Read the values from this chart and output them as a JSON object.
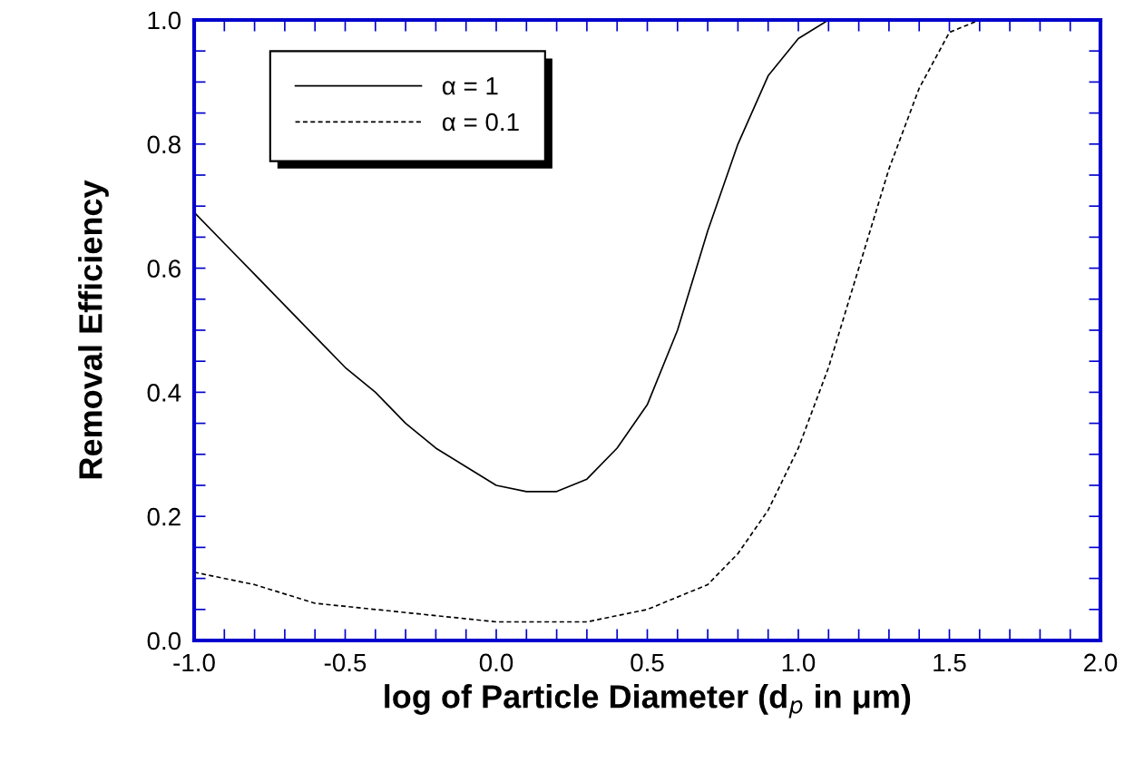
{
  "chart_data": {
    "type": "line",
    "xlabel": "log of Particle Diameter (d$_{p}$ in μm)",
    "ylabel": "Removal Efficiency",
    "xlim": [
      -1.0,
      2.0
    ],
    "ylim": [
      0.0,
      1.0
    ],
    "xticks": [
      {
        "value": -1.0,
        "label": "-1.0"
      },
      {
        "value": -0.9,
        "label": null
      },
      {
        "value": -0.8,
        "label": null
      },
      {
        "value": -0.7,
        "label": null
      },
      {
        "value": -0.6,
        "label": null
      },
      {
        "value": -0.5,
        "label": "-0.5"
      },
      {
        "value": -0.4,
        "label": null
      },
      {
        "value": -0.3,
        "label": null
      },
      {
        "value": -0.2,
        "label": null
      },
      {
        "value": -0.1,
        "label": null
      },
      {
        "value": 0.0,
        "label": "0.0"
      },
      {
        "value": 0.1,
        "label": null
      },
      {
        "value": 0.2,
        "label": null
      },
      {
        "value": 0.3,
        "label": null
      },
      {
        "value": 0.4,
        "label": null
      },
      {
        "value": 0.5,
        "label": "0.5"
      },
      {
        "value": 0.6,
        "label": null
      },
      {
        "value": 0.7,
        "label": null
      },
      {
        "value": 0.8,
        "label": null
      },
      {
        "value": 0.9,
        "label": null
      },
      {
        "value": 1.0,
        "label": "1.0"
      },
      {
        "value": 1.1,
        "label": null
      },
      {
        "value": 1.2,
        "label": null
      },
      {
        "value": 1.3,
        "label": null
      },
      {
        "value": 1.4,
        "label": null
      },
      {
        "value": 1.5,
        "label": "1.5"
      },
      {
        "value": 1.6,
        "label": null
      },
      {
        "value": 1.7,
        "label": null
      },
      {
        "value": 1.8,
        "label": null
      },
      {
        "value": 1.9,
        "label": null
      },
      {
        "value": 2.0,
        "label": "2.0"
      }
    ],
    "yticks": [
      {
        "value": 0.0,
        "label": "0.0"
      },
      {
        "value": 0.05,
        "label": null
      },
      {
        "value": 0.1,
        "label": null
      },
      {
        "value": 0.15,
        "label": null
      },
      {
        "value": 0.2,
        "label": "0.2"
      },
      {
        "value": 0.25,
        "label": null
      },
      {
        "value": 0.3,
        "label": null
      },
      {
        "value": 0.35,
        "label": null
      },
      {
        "value": 0.4,
        "label": "0.4"
      },
      {
        "value": 0.45,
        "label": null
      },
      {
        "value": 0.5,
        "label": null
      },
      {
        "value": 0.55,
        "label": null
      },
      {
        "value": 0.6,
        "label": "0.6"
      },
      {
        "value": 0.65,
        "label": null
      },
      {
        "value": 0.7,
        "label": null
      },
      {
        "value": 0.75,
        "label": null
      },
      {
        "value": 0.8,
        "label": "0.8"
      },
      {
        "value": 0.85,
        "label": null
      },
      {
        "value": 0.9,
        "label": null
      },
      {
        "value": 0.95,
        "label": null
      },
      {
        "value": 1.0,
        "label": "1.0"
      }
    ],
    "legend": "top left",
    "grid": false,
    "marker": "none",
    "series": [
      {
        "name": "α = 1",
        "color": "#000000",
        "line_style": "solid",
        "x": [
          -1.0,
          -0.9,
          -0.8,
          -0.7,
          -0.6,
          -0.5,
          -0.4,
          -0.3,
          -0.2,
          -0.1,
          0.0,
          0.1,
          0.2,
          0.3,
          0.4,
          0.5,
          0.6,
          0.7,
          0.8,
          0.9,
          1.0,
          1.1
        ],
        "values": [
          0.69,
          0.64,
          0.59,
          0.54,
          0.49,
          0.44,
          0.4,
          0.35,
          0.31,
          0.28,
          0.25,
          0.24,
          0.24,
          0.26,
          0.31,
          0.38,
          0.5,
          0.66,
          0.8,
          0.91,
          0.97,
          1.0
        ]
      },
      {
        "name": "α = 0.1",
        "color": "#000000",
        "line_style": "dashed",
        "x": [
          -1.0,
          -0.8,
          -0.6,
          -0.4,
          -0.2,
          0.0,
          0.2,
          0.3,
          0.4,
          0.5,
          0.6,
          0.7,
          0.8,
          0.9,
          1.0,
          1.1,
          1.2,
          1.3,
          1.4,
          1.5,
          1.6
        ],
        "values": [
          0.11,
          0.09,
          0.06,
          0.05,
          0.04,
          0.03,
          0.03,
          0.03,
          0.04,
          0.05,
          0.07,
          0.09,
          0.14,
          0.21,
          0.31,
          0.44,
          0.6,
          0.76,
          0.89,
          0.98,
          1.0
        ]
      }
    ]
  }
}
